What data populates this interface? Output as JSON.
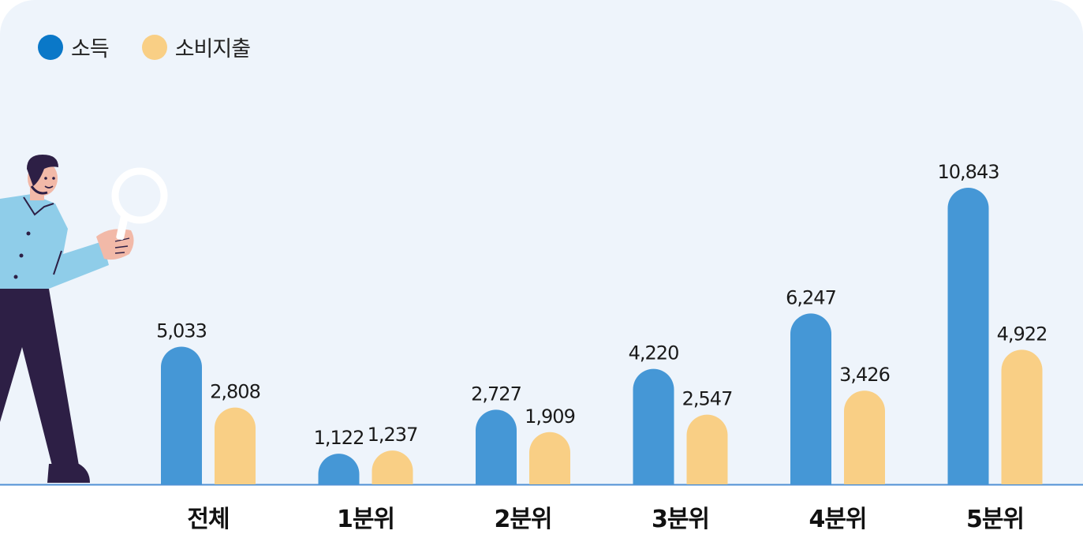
{
  "colors": {
    "income": "#4597d6",
    "spending": "#f9cf85",
    "baseline": "#4f90d4",
    "background": "#eef4fb"
  },
  "legend": [
    {
      "label": "소득",
      "color": "#0a78c8"
    },
    {
      "label": "소비지출",
      "color": "#f9cf85"
    }
  ],
  "chart_data": {
    "type": "bar",
    "categories": [
      "전체",
      "1분위",
      "2분위",
      "3분위",
      "4분위",
      "5분위"
    ],
    "series": [
      {
        "name": "소득",
        "values": [
          5033,
          1122,
          2727,
          4220,
          6247,
          10843
        ],
        "labels": [
          "5,033",
          "1,122",
          "2,727",
          "4,220",
          "6,247",
          "10,843"
        ]
      },
      {
        "name": "소비지출",
        "values": [
          2808,
          1237,
          1909,
          2547,
          3426,
          4922
        ],
        "labels": [
          "2,808",
          "1,237",
          "1,909",
          "2,547",
          "3,426",
          "4,922"
        ]
      }
    ],
    "grid": false,
    "legend_position": "top-left"
  },
  "illustration": {
    "subject": "person-with-magnifying-glass-icon"
  }
}
